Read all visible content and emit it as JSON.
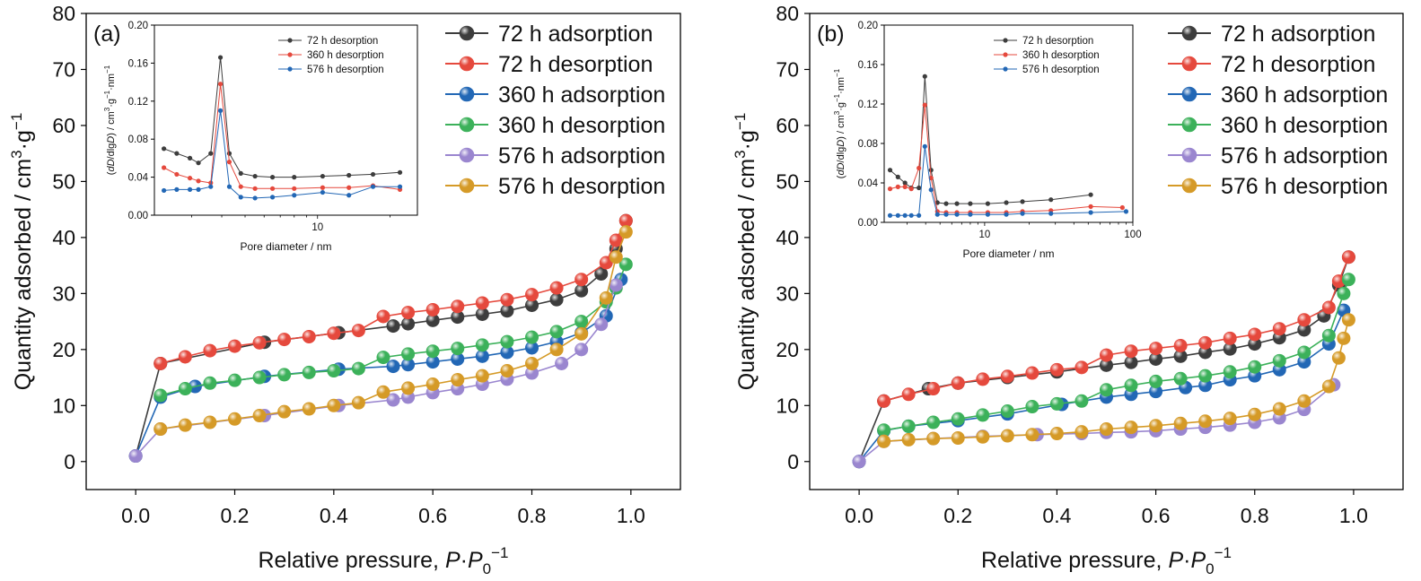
{
  "colors": {
    "72_ads": "#3d3d3d",
    "72_des": "#e5493d",
    "360_ads": "#2267b5",
    "360_des": "#3cb15a",
    "576_ads": "#9a86cf",
    "576_des": "#d59a27"
  },
  "chart_data": [
    {
      "type": "line",
      "panel_label": "(a)",
      "xlabel": "Relative pressure, P·P0−1",
      "ylabel": "Quantity adsorbed / cm3·g−1",
      "xlim": [
        -0.1,
        1.1
      ],
      "ylim": [
        -5,
        80
      ],
      "xticks": [
        "0.0",
        "0.2",
        "0.4",
        "0.6",
        "0.8",
        "1.0"
      ],
      "yticks": [
        "0",
        "10",
        "20",
        "30",
        "40",
        "50",
        "60",
        "70",
        "80"
      ],
      "legend_position": "top-right",
      "series": [
        {
          "name": "72 h adsorption",
          "color_key": "72_ads",
          "x": [
            0.0,
            0.05,
            0.26,
            0.41,
            0.52,
            0.55,
            0.6,
            0.65,
            0.7,
            0.75,
            0.8,
            0.85,
            0.9,
            0.94,
            0.97,
            0.99
          ],
          "y": [
            1.0,
            17.5,
            21.3,
            23.0,
            24.2,
            24.6,
            25.2,
            25.8,
            26.3,
            26.9,
            27.9,
            28.9,
            30.5,
            33.5,
            38,
            43
          ]
        },
        {
          "name": "72 h desorption",
          "color_key": "72_des",
          "x": [
            0.99,
            0.97,
            0.95,
            0.9,
            0.85,
            0.8,
            0.75,
            0.7,
            0.65,
            0.6,
            0.55,
            0.5,
            0.45,
            0.4,
            0.35,
            0.3,
            0.25,
            0.2,
            0.15,
            0.1,
            0.05
          ],
          "y": [
            43.0,
            39.5,
            35.5,
            32.5,
            31.0,
            29.8,
            28.9,
            28.3,
            27.7,
            27.1,
            26.6,
            25.9,
            23.4,
            22.9,
            22.3,
            21.8,
            21.2,
            20.6,
            19.8,
            18.7,
            17.5
          ]
        },
        {
          "name": "360 h adsorption",
          "color_key": "360_ads",
          "x": [
            0.0,
            0.05,
            0.12,
            0.26,
            0.41,
            0.52,
            0.55,
            0.6,
            0.65,
            0.7,
            0.75,
            0.8,
            0.85,
            0.9,
            0.95,
            0.98
          ],
          "y": [
            1.0,
            11.5,
            13.4,
            15.2,
            16.5,
            17.0,
            17.3,
            17.8,
            18.3,
            18.8,
            19.5,
            20.3,
            21.4,
            23.0,
            26.0,
            32.5
          ]
        },
        {
          "name": "360 h desorption",
          "color_key": "360_des",
          "x": [
            0.99,
            0.97,
            0.95,
            0.9,
            0.85,
            0.8,
            0.75,
            0.7,
            0.65,
            0.6,
            0.55,
            0.5,
            0.45,
            0.4,
            0.35,
            0.3,
            0.25,
            0.2,
            0.15,
            0.1,
            0.05
          ],
          "y": [
            35.2,
            31.0,
            28.5,
            25.0,
            23.2,
            22.2,
            21.4,
            20.8,
            20.2,
            19.7,
            19.2,
            18.6,
            16.6,
            16.2,
            15.9,
            15.5,
            15.0,
            14.5,
            14.0,
            13.0,
            11.8
          ]
        },
        {
          "name": "576 h adsorption",
          "color_key": "576_ads",
          "x": [
            0.0,
            0.05,
            0.26,
            0.41,
            0.52,
            0.55,
            0.6,
            0.65,
            0.7,
            0.75,
            0.8,
            0.86,
            0.9,
            0.94,
            0.97
          ],
          "y": [
            1.0,
            5.8,
            8.2,
            10.0,
            11.0,
            11.5,
            12.3,
            13.0,
            13.8,
            14.7,
            15.8,
            17.5,
            20.0,
            24.5,
            31.5
          ]
        },
        {
          "name": "576 h desorption",
          "color_key": "576_des",
          "x": [
            0.99,
            0.97,
            0.95,
            0.9,
            0.85,
            0.8,
            0.75,
            0.7,
            0.65,
            0.6,
            0.55,
            0.5,
            0.45,
            0.4,
            0.35,
            0.3,
            0.25,
            0.2,
            0.15,
            0.1,
            0.05
          ],
          "y": [
            41.0,
            36.5,
            29.2,
            22.8,
            20.0,
            17.5,
            16.2,
            15.3,
            14.6,
            13.8,
            13.1,
            12.4,
            10.5,
            10.0,
            9.4,
            8.9,
            8.2,
            7.6,
            7.0,
            6.5,
            5.8
          ]
        }
      ],
      "inset": {
        "xlabel": "Pore diameter / nm",
        "ylabel": "(dD/dlgD) / cm3·g−1·nm−1",
        "xscale": "log",
        "xlim": [
          2.1,
          26
        ],
        "ylim": [
          0,
          0.2
        ],
        "yticks": [
          "0.00",
          "0.04",
          "0.08",
          "0.12",
          "0.16",
          "0.20"
        ],
        "xticks": [
          "10"
        ],
        "legend_position": "top-right",
        "series": [
          {
            "name": "72 h desorption",
            "color_key": "72_ads",
            "x": [
              2.3,
              2.6,
              2.95,
              3.2,
              3.6,
              3.95,
              4.3,
              4.8,
              5.5,
              6.5,
              8,
              10.5,
              13.5,
              17,
              22
            ],
            "y": [
              0.07,
              0.065,
              0.06,
              0.055,
              0.065,
              0.166,
              0.065,
              0.044,
              0.041,
              0.04,
              0.04,
              0.041,
              0.042,
              0.043,
              0.045
            ]
          },
          {
            "name": "360 h desorption",
            "color_key": "72_des",
            "x": [
              2.3,
              2.6,
              2.95,
              3.2,
              3.6,
              3.95,
              4.3,
              4.8,
              5.5,
              6.5,
              8,
              10.5,
              13.5,
              17,
              22
            ],
            "y": [
              0.05,
              0.043,
              0.039,
              0.036,
              0.034,
              0.138,
              0.056,
              0.03,
              0.028,
              0.028,
              0.028,
              0.029,
              0.029,
              0.031,
              0.027
            ]
          },
          {
            "name": "576 h desorption",
            "color_key": "360_ads",
            "x": [
              2.3,
              2.6,
              2.95,
              3.2,
              3.6,
              3.95,
              4.3,
              4.8,
              5.5,
              6.5,
              8,
              10.5,
              13.5,
              17,
              22
            ],
            "y": [
              0.026,
              0.027,
              0.027,
              0.027,
              0.03,
              0.11,
              0.03,
              0.019,
              0.018,
              0.019,
              0.021,
              0.024,
              0.021,
              0.03,
              0.03
            ]
          }
        ]
      }
    },
    {
      "type": "line",
      "panel_label": "(b)",
      "xlabel": "Relative pressure, P·P0−1",
      "ylabel": "Quantity adsorbed / cm3·g−1",
      "xlim": [
        -0.1,
        1.1
      ],
      "ylim": [
        -5,
        80
      ],
      "xticks": [
        "0.0",
        "0.2",
        "0.4",
        "0.6",
        "0.8",
        "1.0"
      ],
      "yticks": [
        "0",
        "10",
        "20",
        "30",
        "40",
        "50",
        "60",
        "70",
        "80"
      ],
      "legend_position": "top-right",
      "series": [
        {
          "name": "72 h adsorption",
          "color_key": "72_ads",
          "x": [
            0.0,
            0.05,
            0.14,
            0.2,
            0.3,
            0.4,
            0.5,
            0.55,
            0.6,
            0.65,
            0.7,
            0.75,
            0.8,
            0.85,
            0.9,
            0.94,
            0.97,
            0.99
          ],
          "y": [
            0.0,
            10.8,
            13.0,
            14.0,
            15.0,
            16.0,
            17.2,
            17.7,
            18.3,
            18.8,
            19.5,
            20.1,
            21.0,
            22.1,
            23.5,
            26.0,
            31.5,
            36.5
          ]
        },
        {
          "name": "72 h desorption",
          "color_key": "72_des",
          "x": [
            0.99,
            0.97,
            0.95,
            0.9,
            0.85,
            0.8,
            0.75,
            0.7,
            0.65,
            0.6,
            0.55,
            0.5,
            0.45,
            0.4,
            0.35,
            0.3,
            0.25,
            0.2,
            0.15,
            0.1,
            0.05
          ],
          "y": [
            36.5,
            32.2,
            27.5,
            25.3,
            23.7,
            22.7,
            22.0,
            21.2,
            20.7,
            20.2,
            19.7,
            19.0,
            16.8,
            16.4,
            15.8,
            15.2,
            14.7,
            14.0,
            13.0,
            12.0,
            10.8
          ]
        },
        {
          "name": "360 h adsorption",
          "color_key": "360_ads",
          "x": [
            0.0,
            0.05,
            0.1,
            0.2,
            0.3,
            0.41,
            0.5,
            0.55,
            0.6,
            0.66,
            0.7,
            0.75,
            0.8,
            0.85,
            0.9,
            0.95,
            0.98
          ],
          "y": [
            0.0,
            5.5,
            6.3,
            7.3,
            8.5,
            10.2,
            11.5,
            12.0,
            12.5,
            13.2,
            13.6,
            14.6,
            15.3,
            16.4,
            17.8,
            21.0,
            27.0
          ]
        },
        {
          "name": "360 h desorption",
          "color_key": "360_des",
          "x": [
            0.99,
            0.98,
            0.95,
            0.9,
            0.85,
            0.8,
            0.75,
            0.7,
            0.65,
            0.6,
            0.55,
            0.5,
            0.45,
            0.4,
            0.35,
            0.3,
            0.25,
            0.2,
            0.15,
            0.1,
            0.05
          ],
          "y": [
            32.5,
            30.0,
            22.5,
            19.5,
            18.0,
            16.9,
            16.0,
            15.3,
            14.8,
            14.3,
            13.6,
            12.8,
            10.8,
            10.3,
            9.8,
            9.0,
            8.3,
            7.6,
            7.0,
            6.3,
            5.6
          ]
        },
        {
          "name": "576 h adsorption",
          "color_key": "576_ads",
          "x": [
            0.0,
            0.05,
            0.15,
            0.25,
            0.36,
            0.45,
            0.5,
            0.55,
            0.6,
            0.65,
            0.7,
            0.75,
            0.8,
            0.85,
            0.9,
            0.96
          ],
          "y": [
            0.0,
            3.6,
            4.1,
            4.5,
            4.8,
            5.0,
            5.2,
            5.3,
            5.5,
            5.8,
            6.1,
            6.5,
            7.0,
            7.8,
            9.3,
            13.7
          ]
        },
        {
          "name": "576 h desorption",
          "color_key": "576_des",
          "x": [
            0.99,
            0.98,
            0.97,
            0.95,
            0.9,
            0.85,
            0.8,
            0.75,
            0.7,
            0.65,
            0.6,
            0.55,
            0.5,
            0.45,
            0.4,
            0.35,
            0.3,
            0.25,
            0.2,
            0.15,
            0.1,
            0.05
          ],
          "y": [
            25.3,
            22.0,
            18.5,
            13.4,
            10.8,
            9.4,
            8.4,
            7.7,
            7.2,
            6.8,
            6.4,
            6.1,
            5.8,
            5.3,
            5.0,
            4.8,
            4.6,
            4.4,
            4.2,
            4.1,
            3.9,
            3.6
          ]
        }
      ],
      "inset": {
        "xlabel": "Pore diameter / nm",
        "ylabel": "(dD/dlgD) / cm3·g−1·nm−1",
        "xscale": "log",
        "xlim": [
          2.1,
          100
        ],
        "ylim": [
          0,
          0.2
        ],
        "yticks": [
          "0.00",
          "0.04",
          "0.08",
          "0.12",
          "0.16",
          "0.20"
        ],
        "xticks": [
          "10",
          "100"
        ],
        "legend_position": "top-right",
        "series": [
          {
            "name": "72 h desorption",
            "color_key": "72_ads",
            "x": [
              2.3,
              2.6,
              2.9,
              3.2,
              3.6,
              3.95,
              4.35,
              4.8,
              5.5,
              6.5,
              8,
              10.5,
              14,
              18,
              28,
              52
            ],
            "y": [
              0.053,
              0.046,
              0.04,
              0.035,
              0.035,
              0.148,
              0.053,
              0.02,
              0.019,
              0.019,
              0.019,
              0.019,
              0.02,
              0.021,
              0.023,
              0.028
            ]
          },
          {
            "name": "360 h desorption",
            "color_key": "72_des",
            "x": [
              2.3,
              2.6,
              2.9,
              3.2,
              3.6,
              3.95,
              4.35,
              4.8,
              5.5,
              6.5,
              8,
              10.5,
              14,
              18,
              28,
              52,
              85
            ],
            "y": [
              0.034,
              0.036,
              0.036,
              0.034,
              0.055,
              0.119,
              0.045,
              0.011,
              0.01,
              0.01,
              0.01,
              0.01,
              0.01,
              0.011,
              0.012,
              0.016,
              0.015
            ]
          },
          {
            "name": "576 h desorption",
            "color_key": "360_ads",
            "x": [
              2.3,
              2.6,
              2.9,
              3.2,
              3.6,
              3.95,
              4.35,
              4.8,
              5.5,
              6.5,
              8,
              10.5,
              14,
              18,
              28,
              52,
              90
            ],
            "y": [
              0.007,
              0.007,
              0.007,
              0.007,
              0.007,
              0.077,
              0.033,
              0.008,
              0.008,
              0.008,
              0.008,
              0.008,
              0.008,
              0.009,
              0.009,
              0.01,
              0.011
            ]
          }
        ]
      }
    }
  ]
}
